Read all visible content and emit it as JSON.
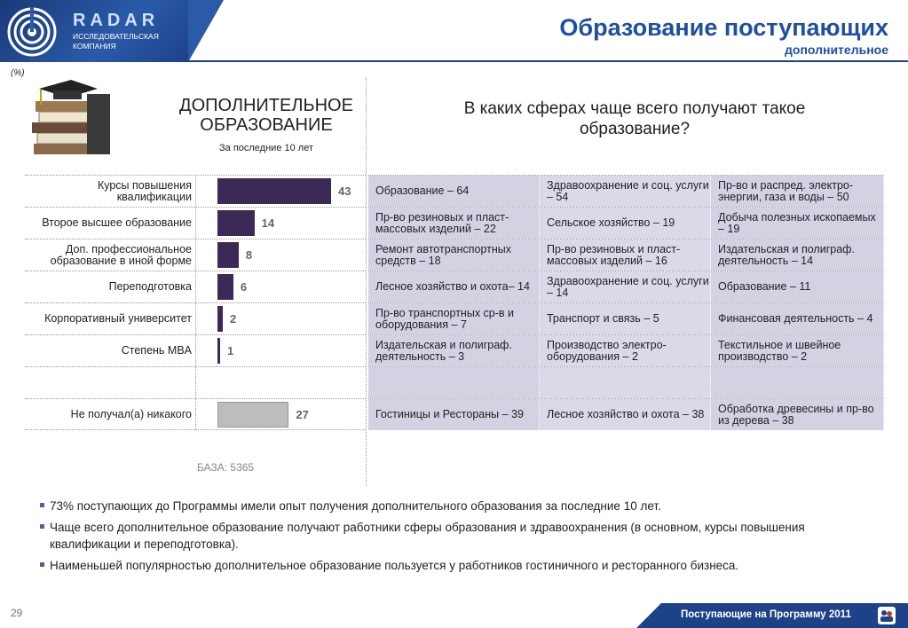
{
  "brand": {
    "name": "RADAR",
    "sub_line1": "ИССЛЕДОВАТЕЛЬСКАЯ",
    "sub_line2": "КОМПАНИЯ"
  },
  "header": {
    "title": "Образование поступающих",
    "subtitle": "дополнительное"
  },
  "unit": "(%)",
  "left": {
    "title_line1": "ДОПОЛНИТЕЛЬНОЕ",
    "title_line2": "ОБРАЗОВАНИЕ",
    "subtitle": "За последние 10 лет",
    "base": "БАЗА: 5365"
  },
  "right": {
    "title_line1": "В каких сферах чаще всего получают такое",
    "title_line2": "образование?"
  },
  "chart_data": {
    "type": "bar",
    "categories": [
      "Курсы повышения квалификации",
      "Второе высшее образование",
      "Доп. профессиональное образование в иной форме",
      "Переподготовка",
      "Корпоративный университет",
      "Степень MBA",
      "",
      "Не получал(а) никакого"
    ],
    "values": [
      43,
      14,
      8,
      6,
      2,
      1,
      null,
      27
    ],
    "colors": [
      "#3b2a56",
      "#3b2a56",
      "#3b2a56",
      "#3b2a56",
      "#3b2a56",
      "#3b2a56",
      null,
      "#bdbdbd"
    ]
  },
  "spheres": [
    [
      "Образование – 64",
      "Здравоохранение и соц. услуги – 54",
      "Пр-во и распред. электро-энергии, газа и воды – 50"
    ],
    [
      "Пр-во резиновых и пласт-массовых изделий – 22",
      "Сельское хозяйство – 19",
      "Добыча полезных ископаемых – 19"
    ],
    [
      "Ремонт автотранспортных средств – 18",
      "Пр-во резиновых и пласт-массовых изделий – 16",
      "Издательская и полиграф. деятельность – 14"
    ],
    [
      "Лесное хозяйство и охота– 14",
      "Здравоохранение и соц. услуги – 14",
      "Образование – 11"
    ],
    [
      "Пр-во транспортных ср-в и оборудования – 7",
      "Транспорт и связь – 5",
      "Финансовая деятельность – 4"
    ],
    [
      "Издательская и полиграф. деятельность – 3",
      "Производство электро-оборудования – 2",
      "Текстильное и швейное производство – 2"
    ],
    [
      "",
      "",
      ""
    ],
    [
      "Гостиницы и Рестораны – 39",
      "Лесное хозяйство и охота – 38",
      "Обработка древесины и пр-во из дерева – 38"
    ]
  ],
  "bullets": [
    "73% поступающих до Программы имели опыт получения дополнительного образования за последние 10 лет.",
    "Чаще всего дополнительное образование получают работники сферы образования и здравоохранения (в основном, курсы повышения квалификации и переподготовка).",
    "Наименьшей популярностью дополнительное образование пользуется у работников гостиничного и ресторанного бизнеса."
  ],
  "footer": {
    "page": "29",
    "text": "Поступающие на Программу 2011"
  }
}
